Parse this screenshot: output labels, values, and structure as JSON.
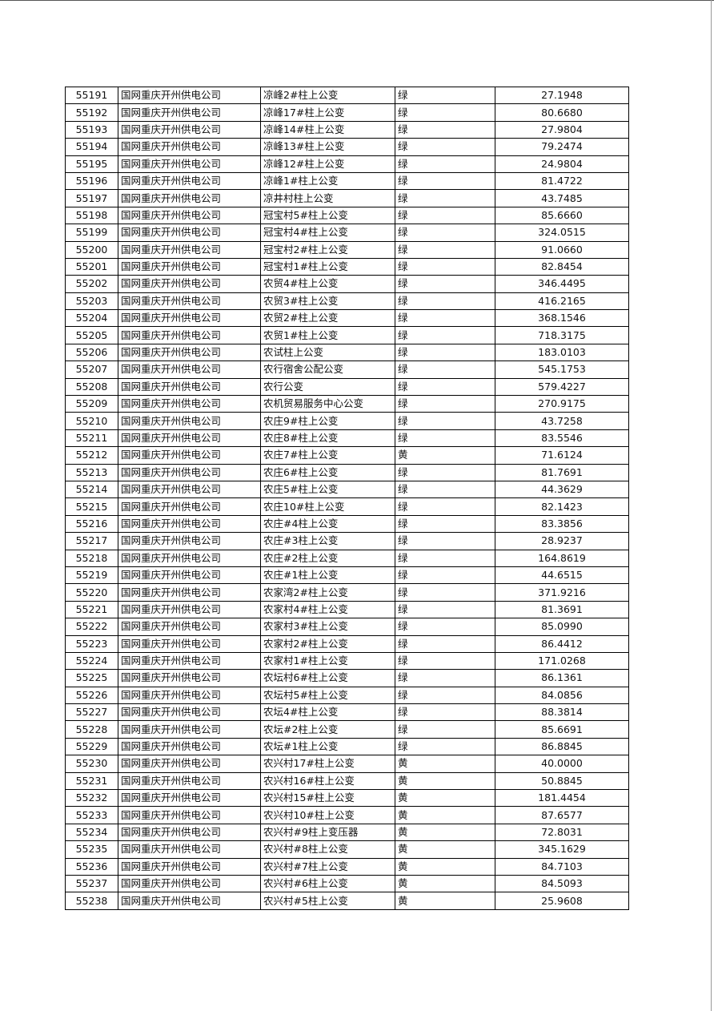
{
  "table": {
    "rows": [
      [
        "55191",
        "国网重庆开州供电公司",
        "凉峰2#柱上公变",
        "绿",
        "27.1948"
      ],
      [
        "55192",
        "国网重庆开州供电公司",
        "凉峰17#柱上公变",
        "绿",
        "80.6680"
      ],
      [
        "55193",
        "国网重庆开州供电公司",
        "凉峰14#柱上公变",
        "绿",
        "27.9804"
      ],
      [
        "55194",
        "国网重庆开州供电公司",
        "凉峰13#柱上公变",
        "绿",
        "79.2474"
      ],
      [
        "55195",
        "国网重庆开州供电公司",
        "凉峰12#柱上公变",
        "绿",
        "24.9804"
      ],
      [
        "55196",
        "国网重庆开州供电公司",
        "凉峰1#柱上公变",
        "绿",
        "81.4722"
      ],
      [
        "55197",
        "国网重庆开州供电公司",
        "凉井村柱上公变",
        "绿",
        "43.7485"
      ],
      [
        "55198",
        "国网重庆开州供电公司",
        "冠宝村5#柱上公变",
        "绿",
        "85.6660"
      ],
      [
        "55199",
        "国网重庆开州供电公司",
        "冠宝村4#柱上公变",
        "绿",
        "324.0515"
      ],
      [
        "55200",
        "国网重庆开州供电公司",
        "冠宝村2#柱上公变",
        "绿",
        "91.0660"
      ],
      [
        "55201",
        "国网重庆开州供电公司",
        "冠宝村1#柱上公变",
        "绿",
        "82.8454"
      ],
      [
        "55202",
        "国网重庆开州供电公司",
        "农贸4#柱上公变",
        "绿",
        "346.4495"
      ],
      [
        "55203",
        "国网重庆开州供电公司",
        "农贸3#柱上公变",
        "绿",
        "416.2165"
      ],
      [
        "55204",
        "国网重庆开州供电公司",
        "农贸2#柱上公变",
        "绿",
        "368.1546"
      ],
      [
        "55205",
        "国网重庆开州供电公司",
        "农贸1#柱上公变",
        "绿",
        "718.3175"
      ],
      [
        "55206",
        "国网重庆开州供电公司",
        "农试柱上公变",
        "绿",
        "183.0103"
      ],
      [
        "55207",
        "国网重庆开州供电公司",
        "农行宿舍公配公变",
        "绿",
        "545.1753"
      ],
      [
        "55208",
        "国网重庆开州供电公司",
        "农行公变",
        "绿",
        "579.4227"
      ],
      [
        "55209",
        "国网重庆开州供电公司",
        "农机贸易服务中心公变",
        "绿",
        "270.9175"
      ],
      [
        "55210",
        "国网重庆开州供电公司",
        "农庄9#柱上公变",
        "绿",
        "43.7258"
      ],
      [
        "55211",
        "国网重庆开州供电公司",
        "农庄8#柱上公变",
        "绿",
        "83.5546"
      ],
      [
        "55212",
        "国网重庆开州供电公司",
        "农庄7#柱上公变",
        "黄",
        "71.6124"
      ],
      [
        "55213",
        "国网重庆开州供电公司",
        "农庄6#柱上公变",
        "绿",
        "81.7691"
      ],
      [
        "55214",
        "国网重庆开州供电公司",
        "农庄5#柱上公变",
        "绿",
        "44.3629"
      ],
      [
        "55215",
        "国网重庆开州供电公司",
        "农庄10#柱上公变",
        "绿",
        "82.1423"
      ],
      [
        "55216",
        "国网重庆开州供电公司",
        "农庄#4柱上公变",
        "绿",
        "83.3856"
      ],
      [
        "55217",
        "国网重庆开州供电公司",
        "农庄#3柱上公变",
        "绿",
        "28.9237"
      ],
      [
        "55218",
        "国网重庆开州供电公司",
        "农庄#2柱上公变",
        "绿",
        "164.8619"
      ],
      [
        "55219",
        "国网重庆开州供电公司",
        "农庄#1柱上公变",
        "绿",
        "44.6515"
      ],
      [
        "55220",
        "国网重庆开州供电公司",
        "农家湾2#柱上公变",
        "绿",
        "371.9216"
      ],
      [
        "55221",
        "国网重庆开州供电公司",
        "农家村4#柱上公变",
        "绿",
        "81.3691"
      ],
      [
        "55222",
        "国网重庆开州供电公司",
        "农家村3#柱上公变",
        "绿",
        "85.0990"
      ],
      [
        "55223",
        "国网重庆开州供电公司",
        "农家村2#柱上公变",
        "绿",
        "86.4412"
      ],
      [
        "55224",
        "国网重庆开州供电公司",
        "农家村1#柱上公变",
        "绿",
        "171.0268"
      ],
      [
        "55225",
        "国网重庆开州供电公司",
        "农坛村6#柱上公变",
        "绿",
        "86.1361"
      ],
      [
        "55226",
        "国网重庆开州供电公司",
        "农坛村5#柱上公变",
        "绿",
        "84.0856"
      ],
      [
        "55227",
        "国网重庆开州供电公司",
        "农坛4#柱上公变",
        "绿",
        "88.3814"
      ],
      [
        "55228",
        "国网重庆开州供电公司",
        "农坛#2柱上公变",
        "绿",
        "85.6691"
      ],
      [
        "55229",
        "国网重庆开州供电公司",
        "农坛#1柱上公变",
        "绿",
        "86.8845"
      ],
      [
        "55230",
        "国网重庆开州供电公司",
        "农兴村17#柱上公变",
        "黄",
        "40.0000"
      ],
      [
        "55231",
        "国网重庆开州供电公司",
        "农兴村16#柱上公变",
        "黄",
        "50.8845"
      ],
      [
        "55232",
        "国网重庆开州供电公司",
        "农兴村15#柱上公变",
        "黄",
        "181.4454"
      ],
      [
        "55233",
        "国网重庆开州供电公司",
        "农兴村10#柱上公变",
        "黄",
        "87.6577"
      ],
      [
        "55234",
        "国网重庆开州供电公司",
        "农兴村#9柱上变压器",
        "黄",
        "72.8031"
      ],
      [
        "55235",
        "国网重庆开州供电公司",
        "农兴村#8柱上公变",
        "黄",
        "345.1629"
      ],
      [
        "55236",
        "国网重庆开州供电公司",
        "农兴村#7柱上公变",
        "黄",
        "84.7103"
      ],
      [
        "55237",
        "国网重庆开州供电公司",
        "农兴村#6柱上公变",
        "黄",
        "84.5093"
      ],
      [
        "55238",
        "国网重庆开州供电公司",
        "农兴村#5柱上公变",
        "黄",
        "25.9608"
      ]
    ]
  }
}
